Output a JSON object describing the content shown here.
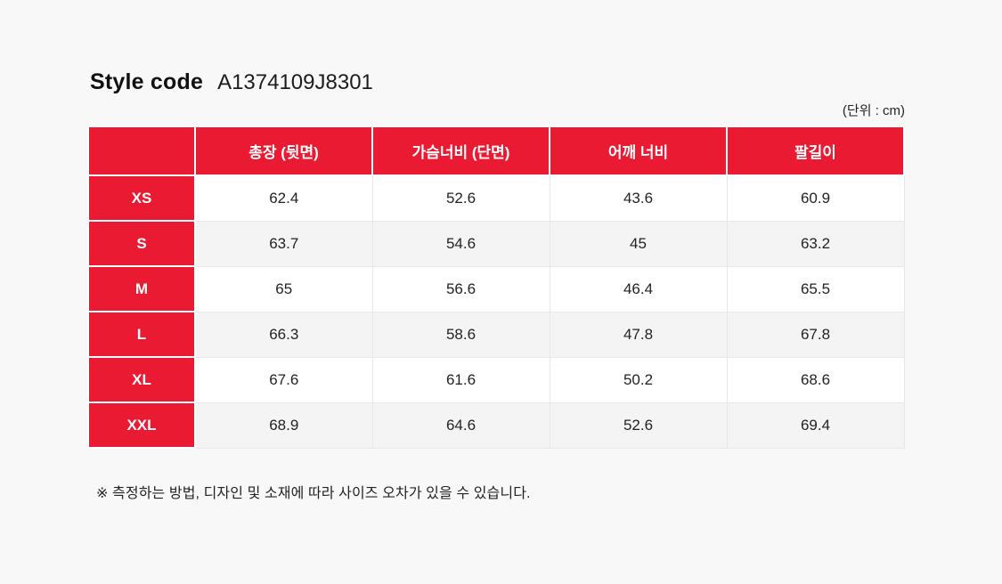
{
  "page": {
    "background": "#F8F8F8",
    "accent_color": "#E91A32"
  },
  "header": {
    "title": "Style code",
    "style_code": "A1374109J8301",
    "unit_label": "(단위 : cm)"
  },
  "table": {
    "columns": [
      "총장 (뒷면)",
      "가슴너비 (단면)",
      "어깨 너비",
      "팔길이"
    ],
    "rows": [
      {
        "size": "XS",
        "values": [
          "62.4",
          "52.6",
          "43.6",
          "60.9"
        ]
      },
      {
        "size": "S",
        "values": [
          "63.7",
          "54.6",
          "45",
          "63.2"
        ]
      },
      {
        "size": "M",
        "values": [
          "65",
          "56.6",
          "46.4",
          "65.5"
        ]
      },
      {
        "size": "L",
        "values": [
          "66.3",
          "58.6",
          "47.8",
          "67.8"
        ]
      },
      {
        "size": "XL",
        "values": [
          "67.6",
          "61.6",
          "50.2",
          "68.6"
        ]
      },
      {
        "size": "XXL",
        "values": [
          "68.9",
          "64.6",
          "52.6",
          "69.4"
        ]
      }
    ]
  },
  "footer": {
    "note": "※ 측정하는 방법, 디자인 및 소재에 따라 사이즈 오차가 있을 수 있습니다."
  }
}
